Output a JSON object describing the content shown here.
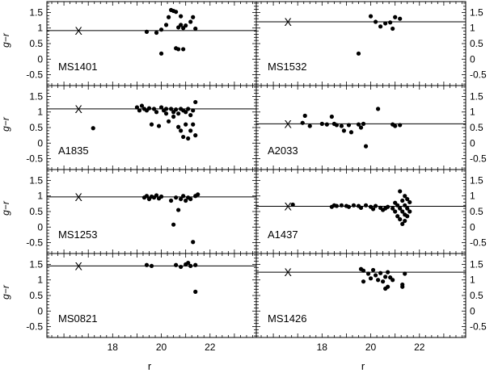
{
  "chart_data": {
    "type": "scatter",
    "xlabel": "r",
    "ylabel": "g−r",
    "xlim": [
      15.3,
      23.9
    ],
    "ylim": [
      -0.85,
      1.85
    ],
    "x_ticks": [
      "18",
      "20",
      "22"
    ],
    "y_ticks": [
      "1.5",
      "1",
      "0.5",
      "0",
      "-0.5"
    ],
    "grid": false,
    "legend": "none",
    "marker_label": "X",
    "point_color": "#000000",
    "panels": [
      {
        "name": "MS1401",
        "x_marker": 16.6,
        "ref_y": 0.92,
        "points": [
          [
            19.4,
            0.88
          ],
          [
            19.8,
            0.85
          ],
          [
            20.0,
            0.95
          ],
          [
            20.0,
            0.18
          ],
          [
            20.2,
            1.1
          ],
          [
            20.3,
            1.35
          ],
          [
            20.4,
            1.58
          ],
          [
            20.5,
            1.55
          ],
          [
            20.6,
            1.52
          ],
          [
            20.6,
            0.35
          ],
          [
            20.7,
            0.32
          ],
          [
            20.7,
            1.02
          ],
          [
            20.8,
            1.38
          ],
          [
            20.8,
            1.1
          ],
          [
            20.9,
            1.0
          ],
          [
            20.9,
            0.32
          ],
          [
            21.0,
            1.08
          ],
          [
            21.2,
            1.2
          ],
          [
            21.3,
            1.35
          ],
          [
            21.4,
            0.98
          ]
        ]
      },
      {
        "name": "MS1532",
        "x_marker": 16.6,
        "ref_y": 1.2,
        "points": [
          [
            19.5,
            0.18
          ],
          [
            20.0,
            1.38
          ],
          [
            20.2,
            1.2
          ],
          [
            20.4,
            1.05
          ],
          [
            20.6,
            1.15
          ],
          [
            20.8,
            1.18
          ],
          [
            20.9,
            0.98
          ],
          [
            21.0,
            1.35
          ],
          [
            21.2,
            1.3
          ]
        ]
      },
      {
        "name": "A1835",
        "x_marker": 16.6,
        "ref_y": 1.1,
        "points": [
          [
            17.2,
            0.48
          ],
          [
            19.0,
            1.15
          ],
          [
            19.1,
            1.05
          ],
          [
            19.2,
            1.2
          ],
          [
            19.3,
            1.1
          ],
          [
            19.4,
            1.05
          ],
          [
            19.5,
            1.12
          ],
          [
            19.6,
            0.6
          ],
          [
            19.7,
            1.1
          ],
          [
            19.8,
            1.0
          ],
          [
            19.9,
            0.55
          ],
          [
            20.0,
            1.15
          ],
          [
            20.1,
            1.05
          ],
          [
            20.2,
            1.1
          ],
          [
            20.2,
            0.95
          ],
          [
            20.3,
            0.7
          ],
          [
            20.4,
            1.1
          ],
          [
            20.5,
            1.0
          ],
          [
            20.5,
            0.85
          ],
          [
            20.6,
            1.08
          ],
          [
            20.7,
            0.95
          ],
          [
            20.7,
            0.52
          ],
          [
            20.8,
            1.1
          ],
          [
            20.8,
            0.4
          ],
          [
            20.9,
            1.05
          ],
          [
            20.9,
            0.2
          ],
          [
            21.0,
            1.0
          ],
          [
            21.0,
            0.6
          ],
          [
            21.1,
            1.1
          ],
          [
            21.1,
            0.15
          ],
          [
            21.2,
            0.9
          ],
          [
            21.2,
            0.4
          ],
          [
            21.3,
            1.05
          ],
          [
            21.3,
            0.6
          ],
          [
            21.4,
            1.32
          ],
          [
            21.4,
            0.25
          ]
        ]
      },
      {
        "name": "A2033",
        "x_marker": 16.6,
        "ref_y": 0.62,
        "points": [
          [
            17.2,
            0.65
          ],
          [
            17.3,
            0.88
          ],
          [
            17.5,
            0.55
          ],
          [
            18.0,
            0.62
          ],
          [
            18.2,
            0.6
          ],
          [
            18.4,
            0.85
          ],
          [
            18.5,
            0.62
          ],
          [
            18.6,
            0.58
          ],
          [
            18.8,
            0.55
          ],
          [
            18.9,
            0.4
          ],
          [
            19.1,
            0.58
          ],
          [
            19.2,
            0.35
          ],
          [
            19.5,
            0.6
          ],
          [
            19.6,
            0.5
          ],
          [
            19.7,
            0.62
          ],
          [
            19.8,
            -0.1
          ],
          [
            20.3,
            1.1
          ],
          [
            20.9,
            0.6
          ],
          [
            21.0,
            0.55
          ],
          [
            21.2,
            0.58
          ]
        ]
      },
      {
        "name": "MS1253",
        "x_marker": 16.6,
        "ref_y": 0.97,
        "points": [
          [
            19.3,
            0.95
          ],
          [
            19.4,
            1.0
          ],
          [
            19.5,
            0.9
          ],
          [
            19.6,
            0.98
          ],
          [
            19.7,
            0.95
          ],
          [
            19.8,
            1.02
          ],
          [
            19.9,
            0.92
          ],
          [
            20.0,
            0.98
          ],
          [
            20.4,
            0.85
          ],
          [
            20.5,
            0.08
          ],
          [
            20.6,
            0.95
          ],
          [
            20.7,
            0.55
          ],
          [
            20.8,
            0.9
          ],
          [
            20.9,
            1.0
          ],
          [
            21.0,
            0.85
          ],
          [
            21.1,
            0.95
          ],
          [
            21.2,
            0.9
          ],
          [
            21.3,
            -0.48
          ],
          [
            21.4,
            1.0
          ],
          [
            21.5,
            1.05
          ]
        ]
      },
      {
        "name": "A1437",
        "x_marker": 16.6,
        "ref_y": 0.67,
        "points": [
          [
            16.8,
            0.72
          ],
          [
            18.4,
            0.65
          ],
          [
            18.5,
            0.7
          ],
          [
            18.6,
            0.68
          ],
          [
            18.8,
            0.7
          ],
          [
            19.0,
            0.68
          ],
          [
            19.1,
            0.65
          ],
          [
            19.3,
            0.7
          ],
          [
            19.5,
            0.68
          ],
          [
            19.6,
            0.62
          ],
          [
            19.8,
            0.7
          ],
          [
            20.0,
            0.65
          ],
          [
            20.1,
            0.58
          ],
          [
            20.2,
            0.68
          ],
          [
            20.4,
            0.62
          ],
          [
            20.5,
            0.55
          ],
          [
            20.6,
            0.6
          ],
          [
            20.7,
            0.65
          ],
          [
            20.9,
            0.6
          ],
          [
            21.0,
            0.78
          ],
          [
            21.0,
            0.5
          ],
          [
            21.1,
            0.7
          ],
          [
            21.1,
            0.35
          ],
          [
            21.2,
            1.15
          ],
          [
            21.2,
            0.6
          ],
          [
            21.2,
            0.25
          ],
          [
            21.3,
            0.85
          ],
          [
            21.3,
            0.5
          ],
          [
            21.3,
            0.1
          ],
          [
            21.4,
            1.0
          ],
          [
            21.4,
            0.7
          ],
          [
            21.4,
            0.4
          ],
          [
            21.4,
            0.2
          ],
          [
            21.5,
            0.9
          ],
          [
            21.5,
            0.6
          ],
          [
            21.5,
            0.35
          ],
          [
            21.6,
            0.8
          ],
          [
            21.6,
            0.5
          ]
        ]
      },
      {
        "name": "MS0821",
        "x_marker": 16.6,
        "ref_y": 1.45,
        "points": [
          [
            19.4,
            1.48
          ],
          [
            19.6,
            1.45
          ],
          [
            20.6,
            1.48
          ],
          [
            20.8,
            1.42
          ],
          [
            21.0,
            1.5
          ],
          [
            21.1,
            1.55
          ],
          [
            21.2,
            1.45
          ],
          [
            21.4,
            1.48
          ],
          [
            21.4,
            0.62
          ]
        ]
      },
      {
        "name": "MS1426",
        "x_marker": 16.6,
        "ref_y": 1.25,
        "points": [
          [
            19.6,
            1.35
          ],
          [
            19.7,
            1.3
          ],
          [
            19.7,
            0.95
          ],
          [
            19.9,
            1.2
          ],
          [
            20.0,
            1.05
          ],
          [
            20.1,
            1.32
          ],
          [
            20.2,
            1.15
          ],
          [
            20.3,
            1.0
          ],
          [
            20.4,
            1.22
          ],
          [
            20.5,
            0.95
          ],
          [
            20.6,
            1.1
          ],
          [
            20.6,
            0.72
          ],
          [
            20.7,
            1.25
          ],
          [
            20.7,
            0.78
          ],
          [
            20.8,
            1.08
          ],
          [
            20.9,
            1.0
          ],
          [
            21.3,
            0.85
          ],
          [
            21.3,
            0.78
          ],
          [
            21.4,
            1.2
          ]
        ]
      }
    ]
  }
}
